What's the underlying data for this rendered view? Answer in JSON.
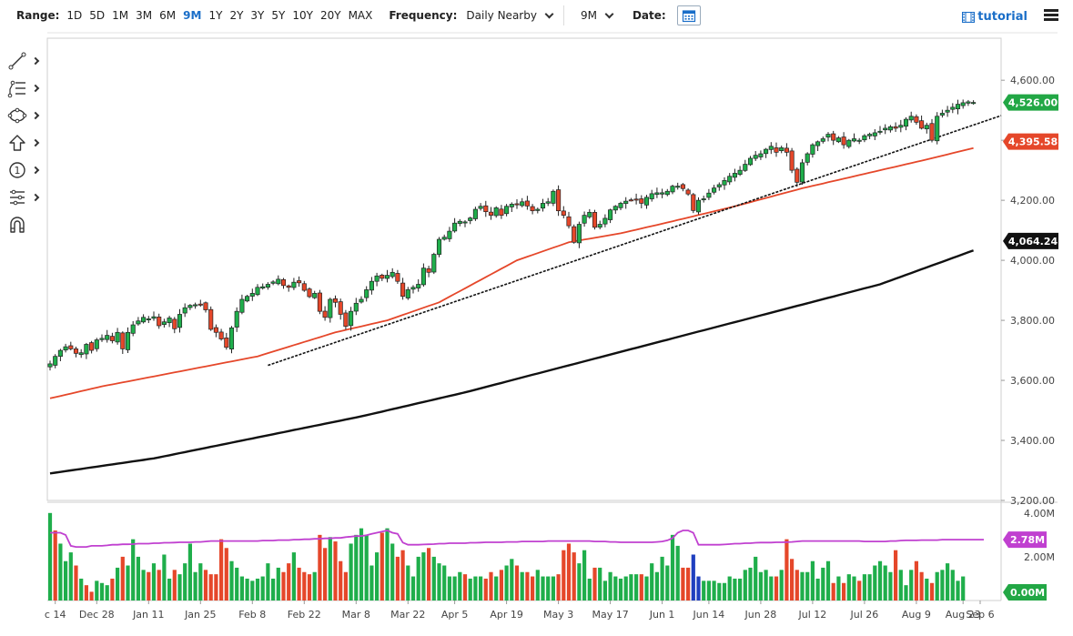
{
  "toolbar": {
    "range_label": "Range:",
    "ranges": [
      "1D",
      "5D",
      "1M",
      "3M",
      "6M",
      "9M",
      "1Y",
      "2Y",
      "3Y",
      "5Y",
      "10Y",
      "20Y",
      "MAX"
    ],
    "active_range": "9M",
    "frequency_label": "Frequency:",
    "frequency_value": "Daily Nearby",
    "period_value": "9M",
    "date_label": "Date:",
    "tutorial_label": "tutorial"
  },
  "tools": [
    "line-tool-icon",
    "fibonacci-tool-icon",
    "shape-tool-icon",
    "arrow-tool-icon",
    "annotation-tool-icon",
    "indicator-tool-icon",
    "magnet-icon"
  ],
  "chart_data": [
    {
      "type": "candlestick",
      "title": "",
      "xlabel": "",
      "ylabel": "",
      "x_tick_labels": [
        "c 14",
        "Dec 28",
        "Jan 11",
        "Jan 25",
        "Feb 8",
        "Feb 22",
        "Mar 8",
        "Mar 22",
        "Apr 5",
        "Apr 19",
        "May 3",
        "May 17",
        "Jun 1",
        "Jun 14",
        "Jun 28",
        "Jul 12",
        "Jul 26",
        "Aug 9",
        "Aug 23",
        "Sep 6"
      ],
      "y_tick_labels": [
        "4,600.00",
        "4,400.00",
        "4,200.00",
        "4,000.00",
        "3,800.00",
        "3,600.00",
        "3,400.00",
        "3,200.00"
      ],
      "y_ticks": [
        4600,
        4400,
        4200,
        4000,
        3800,
        3600,
        3400,
        3200
      ],
      "ylim": [
        3200,
        4740
      ],
      "grid": false,
      "closes": [
        3655,
        3680,
        3700,
        3712,
        3705,
        3690,
        3692,
        3720,
        3700,
        3735,
        3740,
        3750,
        3732,
        3760,
        3705,
        3760,
        3785,
        3798,
        3810,
        3805,
        3812,
        3782,
        3795,
        3808,
        3772,
        3820,
        3842,
        3850,
        3852,
        3853,
        3835,
        3770,
        3760,
        3738,
        3710,
        3775,
        3830,
        3870,
        3880,
        3890,
        3910,
        3912,
        3920,
        3928,
        3937,
        3916,
        3910,
        3927,
        3925,
        3900,
        3879,
        3890,
        3830,
        3810,
        3870,
        3860,
        3820,
        3780,
        3830,
        3857,
        3870,
        3902,
        3930,
        3948,
        3940,
        3950,
        3960,
        3930,
        3880,
        3902,
        3910,
        3920,
        3974,
        3960,
        4020,
        4070,
        4077,
        4097,
        4124,
        4130,
        4128,
        4141,
        4170,
        4180,
        4162,
        4150,
        4175,
        4150,
        4180,
        4187,
        4185,
        4195,
        4181,
        4165,
        4170,
        4190,
        4195,
        4230,
        4165,
        4150,
        4115,
        4060,
        4120,
        4150,
        4160,
        4110,
        4120,
        4140,
        4168,
        4180,
        4190,
        4197,
        4200,
        4202,
        4190,
        4210,
        4222,
        4225,
        4225,
        4230,
        4247,
        4247,
        4239,
        4221,
        4166,
        4200,
        4205,
        4224,
        4241,
        4252,
        4266,
        4280,
        4290,
        4300,
        4320,
        4340,
        4350,
        4355,
        4370,
        4380,
        4360,
        4375,
        4360,
        4300,
        4260,
        4325,
        4355,
        4385,
        4395,
        4405,
        4420,
        4400,
        4408,
        4385,
        4400,
        4405,
        4400,
        4415,
        4420,
        4425,
        4430,
        4440,
        4445,
        4440,
        4450,
        4470,
        4480,
        4460,
        4440,
        4450,
        4400,
        4480,
        4490,
        4500,
        4510,
        4520,
        4525,
        4528,
        4526
      ]
    },
    {
      "type": "line",
      "title": "",
      "xlabel": "",
      "ylabel": "",
      "series": [
        {
          "name": "",
          "color": "#e5472a",
          "last_value_label": "4,395.58",
          "points": [
            [
              0,
              3540
            ],
            [
              10,
              3580
            ],
            [
              25,
              3630
            ],
            [
              40,
              3680
            ],
            [
              55,
              3760
            ],
            [
              65,
              3800
            ],
            [
              75,
              3860
            ],
            [
              90,
              4000
            ],
            [
              100,
              4060
            ],
            [
              110,
              4090
            ],
            [
              120,
              4130
            ],
            [
              132,
              4180
            ],
            [
              145,
              4240
            ],
            [
              155,
              4280
            ],
            [
              170,
              4340
            ],
            [
              183,
              4395.58
            ]
          ]
        },
        {
          "name": "",
          "color": "#111111",
          "last_value_label": "4,064.24",
          "points": [
            [
              0,
              3290
            ],
            [
              20,
              3340
            ],
            [
              40,
              3410
            ],
            [
              60,
              3480
            ],
            [
              80,
              3560
            ],
            [
              100,
              3650
            ],
            [
              120,
              3740
            ],
            [
              140,
              3830
            ],
            [
              160,
              3920
            ],
            [
              183,
              4064.24
            ]
          ]
        }
      ]
    },
    {
      "type": "line",
      "title": "",
      "xlabel": "",
      "ylabel": "",
      "series": [
        {
          "name": "",
          "color": "#111111",
          "dashed": true,
          "points": [
            [
              42,
              3650
            ],
            [
              60,
              3740
            ],
            [
              80,
              3880
            ],
            [
              100,
              4010
            ],
            [
              120,
              4130
            ],
            [
              140,
              4240
            ],
            [
              160,
              4350
            ],
            [
              183,
              4470
            ]
          ]
        }
      ]
    },
    {
      "type": "bar",
      "title": "",
      "xlabel": "",
      "ylabel": "",
      "unit": "M",
      "y_tick_labels": [
        "4.00M",
        "2.00M",
        "0.00M"
      ],
      "y_ticks": [
        4,
        2,
        0
      ],
      "ylim": [
        0,
        4.2
      ],
      "current_value_label": "2.78M",
      "zero_label": "0.00M",
      "average_line_color": "#c040d0",
      "volume_average": [
        3.1,
        3.1,
        3.1,
        3.0,
        2.5,
        2.45,
        2.45,
        2.45,
        2.5,
        2.5,
        2.5,
        2.52,
        2.55,
        2.55,
        2.57,
        2.57,
        2.58,
        2.6,
        2.6,
        2.6,
        2.62,
        2.62,
        2.64,
        2.64,
        2.65,
        2.66,
        2.66,
        2.66,
        2.68,
        2.68,
        2.7,
        2.72,
        2.72,
        2.72,
        2.72,
        2.72,
        2.72,
        2.72,
        2.72,
        2.72,
        2.72,
        2.74,
        2.74,
        2.74,
        2.76,
        2.76,
        2.76,
        2.78,
        2.78,
        2.8,
        2.8,
        2.82,
        2.82,
        2.84,
        2.84,
        2.86,
        2.86,
        2.9,
        2.92,
        2.95,
        2.95,
        2.98,
        3.05,
        3.1,
        3.15,
        3.2,
        3.1,
        3.05,
        2.65,
        2.55,
        2.55,
        2.55,
        2.56,
        2.57,
        2.58,
        2.6,
        2.6,
        2.62,
        2.62,
        2.62,
        2.62,
        2.64,
        2.64,
        2.65,
        2.66,
        2.66,
        2.66,
        2.66,
        2.68,
        2.68,
        2.68,
        2.7,
        2.7,
        2.7,
        2.7,
        2.7,
        2.72,
        2.72,
        2.72,
        2.72,
        2.72,
        2.72,
        2.72,
        2.72,
        2.72,
        2.7,
        2.7,
        2.7,
        2.68,
        2.68,
        2.66,
        2.66,
        2.66,
        2.66,
        2.66,
        2.66,
        2.66,
        2.68,
        2.7,
        2.75,
        2.85,
        3.1,
        3.2,
        3.2,
        3.1,
        2.55,
        2.55,
        2.55,
        2.55,
        2.55,
        2.56,
        2.58,
        2.6,
        2.6,
        2.62,
        2.62,
        2.64,
        2.65,
        2.65,
        2.65,
        2.66,
        2.66,
        2.67,
        2.68,
        2.7,
        2.72,
        2.72,
        2.72,
        2.72,
        2.72,
        2.72,
        2.72,
        2.72,
        2.72,
        2.72,
        2.72,
        2.72,
        2.7,
        2.7,
        2.7,
        2.7,
        2.7,
        2.72,
        2.72,
        2.74,
        2.75,
        2.75,
        2.75,
        2.76,
        2.76,
        2.76,
        2.76,
        2.78,
        2.78,
        2.78,
        2.78,
        2.78,
        2.78,
        2.78,
        2.78,
        2.78
      ],
      "values": [
        4.0,
        3.2,
        2.6,
        1.8,
        2.2,
        1.6,
        1.0,
        0.7,
        0.4,
        0.9,
        0.8,
        0.7,
        1.0,
        1.5,
        2.0,
        1.6,
        2.8,
        2.0,
        1.4,
        1.3,
        1.7,
        1.4,
        2.1,
        1.0,
        1.4,
        1.2,
        1.7,
        2.6,
        1.3,
        1.7,
        1.4,
        1.2,
        1.2,
        2.8,
        2.4,
        1.8,
        1.5,
        1.1,
        1.0,
        0.9,
        1.0,
        1.1,
        1.7,
        1.0,
        1.5,
        1.3,
        1.7,
        2.2,
        1.5,
        1.3,
        1.2,
        1.3,
        3.0,
        2.4,
        2.9,
        2.7,
        1.8,
        1.3,
        2.6,
        3.0,
        3.3,
        3.0,
        1.6,
        2.2,
        3.1,
        3.3,
        2.6,
        2.0,
        2.3,
        1.6,
        1.1,
        2.0,
        2.2,
        2.4,
        2.0,
        1.7,
        1.6,
        1.1,
        1.1,
        1.3,
        1.2,
        1.0,
        1.1,
        1.1,
        1.0,
        1.3,
        1.1,
        1.4,
        1.6,
        1.9,
        1.6,
        1.3,
        1.3,
        1.1,
        1.4,
        1.1,
        1.1,
        1.1,
        1.2,
        2.3,
        2.6,
        2.2,
        1.7,
        2.3,
        1.0,
        1.5,
        1.5,
        0.9,
        1.3,
        1.1,
        1.0,
        1.1,
        1.2,
        1.2,
        1.2,
        1.1,
        1.7,
        1.3,
        2.0,
        1.6,
        3.0,
        2.5,
        1.5,
        1.5,
        2.1,
        1.1,
        0.9,
        0.9,
        0.9,
        0.8,
        0.8,
        1.1,
        1.0,
        1.0,
        1.4,
        1.5,
        2.0,
        1.3,
        1.4,
        1.1,
        1.1,
        1.4,
        2.8,
        1.9,
        1.4,
        1.3,
        1.3,
        1.8,
        1.0,
        1.5,
        1.8,
        0.8,
        1.1,
        0.8,
        1.2,
        1.1,
        0.9,
        1.2,
        1.2,
        1.6,
        1.8,
        1.6,
        1.3,
        2.3,
        1.4,
        0.7,
        1.4,
        1.8,
        1.3,
        1.0,
        0.8,
        1.3,
        1.4,
        1.7,
        1.4,
        0.9,
        1.1
      ],
      "direction": [
        1,
        0,
        1,
        1,
        1,
        0,
        1,
        0,
        0,
        1,
        1,
        1,
        0,
        1,
        0,
        1,
        1,
        1,
        1,
        0,
        1,
        0,
        1,
        1,
        0,
        1,
        1,
        1,
        1,
        1,
        0,
        0,
        0,
        0,
        0,
        1,
        1,
        1,
        1,
        1,
        1,
        1,
        1,
        1,
        1,
        0,
        0,
        1,
        0,
        0,
        0,
        1,
        0,
        0,
        1,
        0,
        0,
        0,
        1,
        1,
        1,
        1,
        1,
        1,
        0,
        1,
        1,
        0,
        0,
        1,
        1,
        1,
        1,
        0,
        1,
        1,
        1,
        1,
        1,
        1,
        0,
        1,
        1,
        1,
        0,
        0,
        1,
        0,
        1,
        1,
        0,
        1,
        0,
        0,
        1,
        1,
        1,
        1,
        0,
        0,
        0,
        0,
        1,
        1,
        1,
        0,
        1,
        1,
        1,
        1,
        1,
        1,
        1,
        1,
        0,
        1,
        1,
        1,
        1,
        1,
        1,
        1,
        0,
        0,
        0,
        1,
        1,
        1,
        1,
        1,
        1,
        1,
        1,
        1,
        1,
        1,
        1,
        1,
        1,
        1,
        0,
        1,
        0,
        0,
        0,
        1,
        1,
        1,
        1,
        1,
        1,
        0,
        1,
        0,
        1,
        1,
        0,
        1,
        1,
        1,
        1,
        1,
        1,
        0,
        1,
        1,
        1,
        0,
        0,
        1,
        0,
        1,
        1,
        1,
        1,
        1,
        1,
        1,
        0
      ]
    }
  ],
  "price_labels": {
    "last_price": "4,526.00",
    "last_price_color": "#22a745",
    "ma_fast": "4,395.58",
    "ma_fast_color": "#e5472a",
    "ma_slow": "4,064.24",
    "ma_slow_color": "#111111"
  }
}
